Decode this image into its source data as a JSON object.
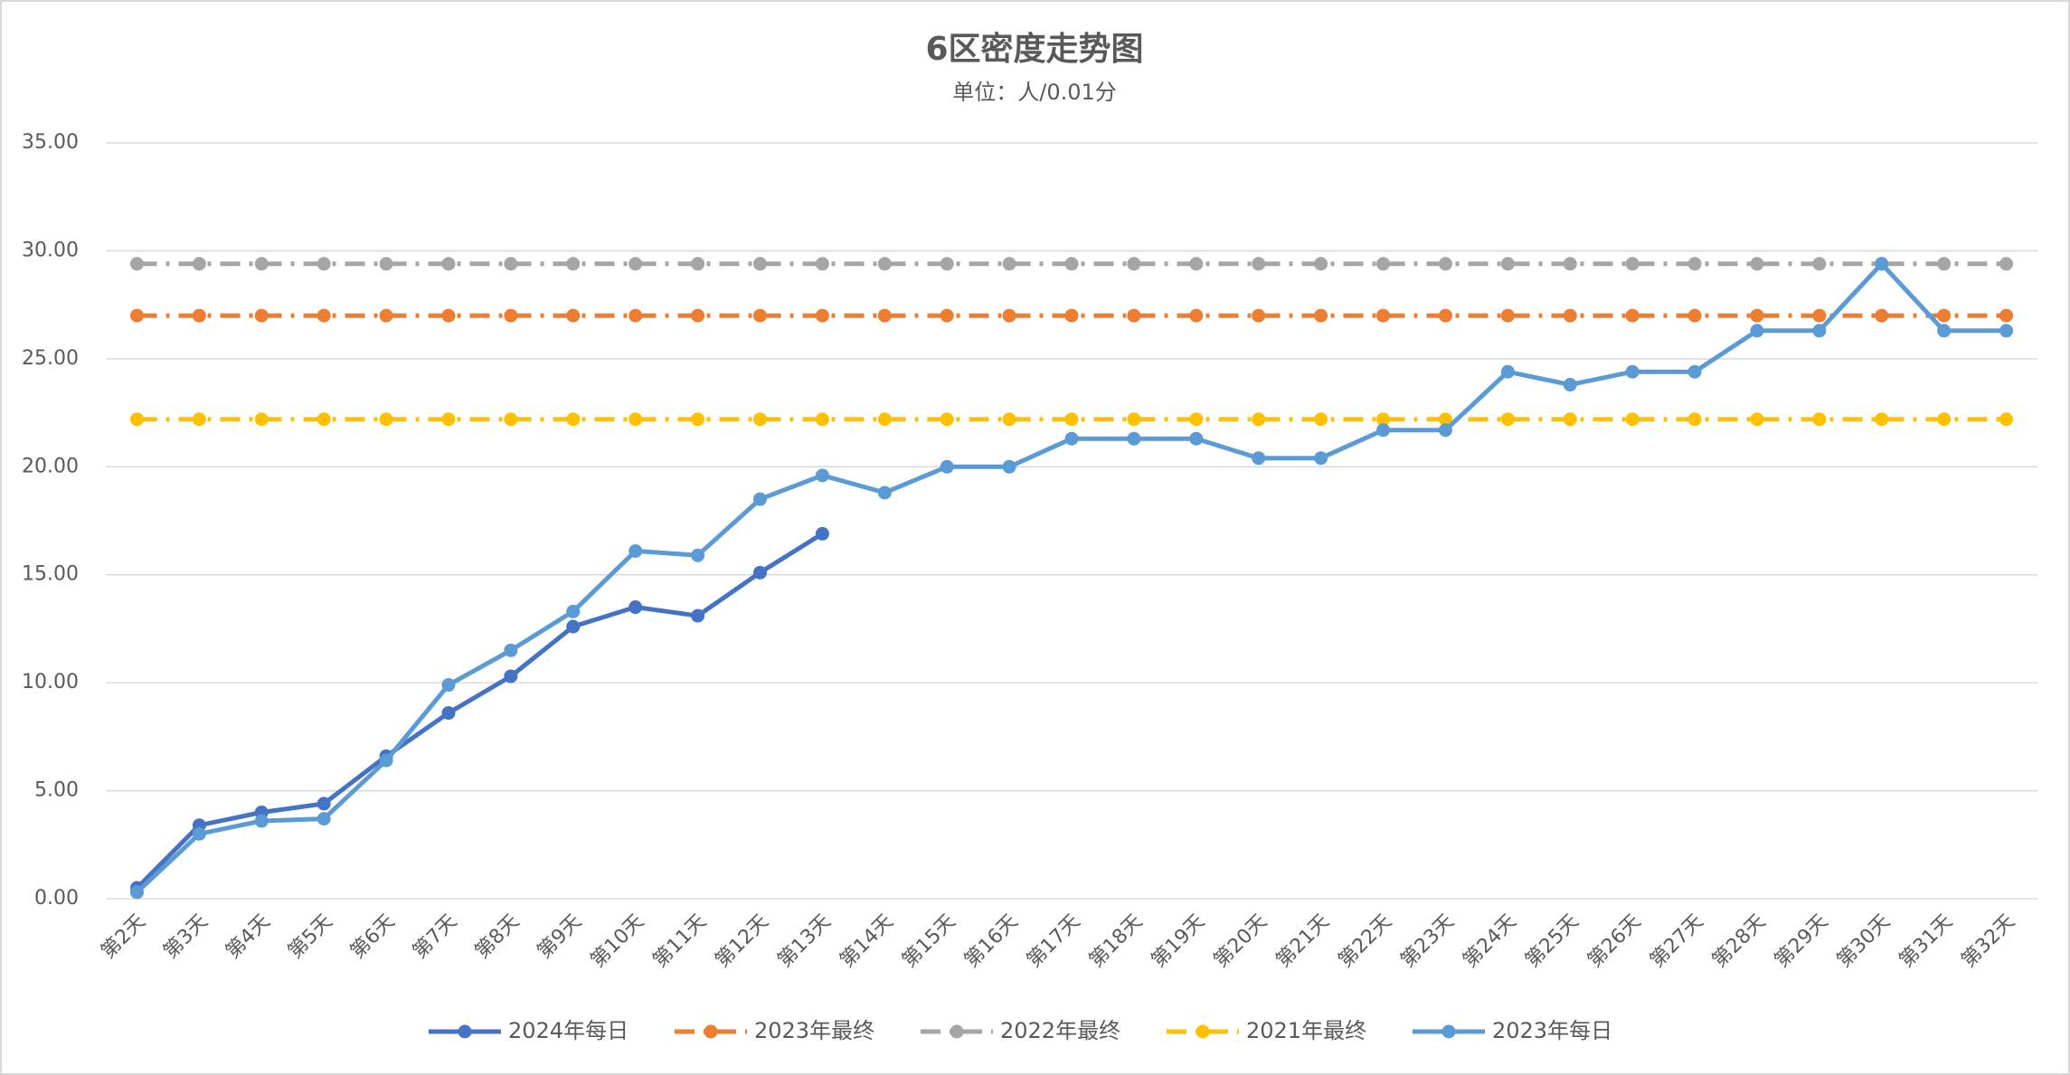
{
  "chart_data": {
    "type": "line",
    "title": "6区密度走势图",
    "subtitle": "单位：人/0.01分",
    "categories": [
      "第2天",
      "第3天",
      "第4天",
      "第5天",
      "第6天",
      "第7天",
      "第8天",
      "第9天",
      "第10天",
      "第11天",
      "第12天",
      "第13天",
      "第14天",
      "第15天",
      "第16天",
      "第17天",
      "第18天",
      "第19天",
      "第20天",
      "第21天",
      "第22天",
      "第23天",
      "第24天",
      "第25天",
      "第26天",
      "第27天",
      "第28天",
      "第29天",
      "第30天",
      "第31天",
      "第32天"
    ],
    "series": [
      {
        "name": "2024年每日",
        "color": "#4472c4",
        "linestyle": "solid",
        "values": [
          0.5,
          3.4,
          4.0,
          4.4,
          6.6,
          8.6,
          10.3,
          12.6,
          13.5,
          13.1,
          15.1,
          16.9,
          null,
          null,
          null,
          null,
          null,
          null,
          null,
          null,
          null,
          null,
          null,
          null,
          null,
          null,
          null,
          null,
          null,
          null,
          null
        ]
      },
      {
        "name": "2023年最终",
        "color": "#ed7d31",
        "linestyle": "dashdot",
        "values": [
          27.0,
          27.0,
          27.0,
          27.0,
          27.0,
          27.0,
          27.0,
          27.0,
          27.0,
          27.0,
          27.0,
          27.0,
          27.0,
          27.0,
          27.0,
          27.0,
          27.0,
          27.0,
          27.0,
          27.0,
          27.0,
          27.0,
          27.0,
          27.0,
          27.0,
          27.0,
          27.0,
          27.0,
          27.0,
          27.0,
          27.0
        ]
      },
      {
        "name": "2022年最终",
        "color": "#a5a5a5",
        "linestyle": "dashdot",
        "values": [
          29.4,
          29.4,
          29.4,
          29.4,
          29.4,
          29.4,
          29.4,
          29.4,
          29.4,
          29.4,
          29.4,
          29.4,
          29.4,
          29.4,
          29.4,
          29.4,
          29.4,
          29.4,
          29.4,
          29.4,
          29.4,
          29.4,
          29.4,
          29.4,
          29.4,
          29.4,
          29.4,
          29.4,
          29.4,
          29.4,
          29.4
        ]
      },
      {
        "name": "2021年最终",
        "color": "#ffc000",
        "linestyle": "dashdot",
        "values": [
          22.2,
          22.2,
          22.2,
          22.2,
          22.2,
          22.2,
          22.2,
          22.2,
          22.2,
          22.2,
          22.2,
          22.2,
          22.2,
          22.2,
          22.2,
          22.2,
          22.2,
          22.2,
          22.2,
          22.2,
          22.2,
          22.2,
          22.2,
          22.2,
          22.2,
          22.2,
          22.2,
          22.2,
          22.2,
          22.2,
          22.2
        ]
      },
      {
        "name": "2023年每日",
        "color": "#5b9bd5",
        "linestyle": "solid",
        "values": [
          0.3,
          3.0,
          3.6,
          3.7,
          6.4,
          9.9,
          11.5,
          13.3,
          16.1,
          15.9,
          18.5,
          19.6,
          18.8,
          20.0,
          20.0,
          21.3,
          21.3,
          21.3,
          20.4,
          20.4,
          21.7,
          21.7,
          24.4,
          23.8,
          24.4,
          24.4,
          26.3,
          26.3,
          29.4,
          26.3,
          26.3
        ]
      }
    ],
    "ylim": [
      0,
      35
    ],
    "yticks": [
      {
        "value": 0,
        "label": "0.00"
      },
      {
        "value": 5,
        "label": "5.00"
      },
      {
        "value": 10,
        "label": "10.00"
      },
      {
        "value": 15,
        "label": "15.00"
      },
      {
        "value": 20,
        "label": "20.00"
      },
      {
        "value": 25,
        "label": "25.00"
      },
      {
        "value": 30,
        "label": "30.00"
      },
      {
        "value": 35,
        "label": "35.00"
      }
    ],
    "grid": true,
    "legend": "bottom"
  }
}
